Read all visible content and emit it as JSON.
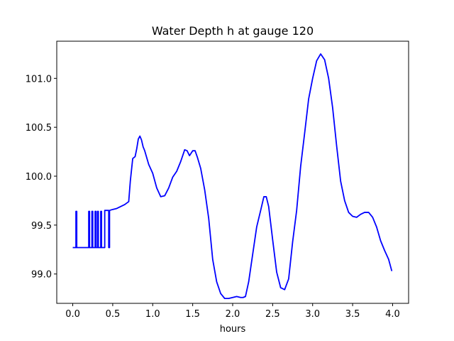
{
  "chart_data": {
    "type": "line",
    "title": "Water Depth h at gauge 120",
    "xlabel": "hours",
    "ylabel": "",
    "xlim": [
      -0.2,
      4.2
    ],
    "ylim": [
      98.7,
      101.38
    ],
    "x_ticks": [
      0.0,
      0.5,
      1.0,
      1.5,
      2.0,
      2.5,
      3.0,
      3.5,
      4.0
    ],
    "x_tick_labels": [
      "0.0",
      "0.5",
      "1.0",
      "1.5",
      "2.0",
      "2.5",
      "3.0",
      "3.5",
      "4.0"
    ],
    "y_ticks": [
      99.0,
      99.5,
      100.0,
      100.5,
      101.0
    ],
    "y_tick_labels": [
      "99.0",
      "99.5",
      "100.0",
      "100.5",
      "101.0"
    ],
    "grid": false,
    "series": [
      {
        "color": "#0000ff",
        "x": [
          0.0,
          0.04,
          0.04,
          0.05,
          0.05,
          0.2,
          0.2,
          0.21,
          0.21,
          0.24,
          0.24,
          0.25,
          0.25,
          0.28,
          0.28,
          0.29,
          0.29,
          0.31,
          0.31,
          0.32,
          0.32,
          0.35,
          0.35,
          0.36,
          0.36,
          0.4,
          0.4,
          0.41,
          0.45,
          0.45,
          0.46,
          0.46,
          0.5,
          0.55,
          0.6,
          0.65,
          0.7,
          0.72,
          0.75,
          0.78,
          0.8,
          0.82,
          0.84,
          0.86,
          0.88,
          0.9,
          0.95,
          1.0,
          1.05,
          1.1,
          1.15,
          1.2,
          1.25,
          1.3,
          1.35,
          1.4,
          1.43,
          1.46,
          1.5,
          1.53,
          1.56,
          1.6,
          1.65,
          1.7,
          1.75,
          1.8,
          1.85,
          1.9,
          1.95,
          2.0,
          2.05,
          2.1,
          2.13,
          2.16,
          2.2,
          2.25,
          2.3,
          2.35,
          2.39,
          2.42,
          2.45,
          2.5,
          2.55,
          2.6,
          2.65,
          2.7,
          2.75,
          2.8,
          2.85,
          2.9,
          2.95,
          3.0,
          3.05,
          3.1,
          3.15,
          3.2,
          3.25,
          3.3,
          3.35,
          3.4,
          3.45,
          3.5,
          3.55,
          3.6,
          3.65,
          3.7,
          3.75,
          3.8,
          3.85,
          3.9,
          3.95,
          3.99
        ],
        "y": [
          99.27,
          99.27,
          99.64,
          99.64,
          99.27,
          99.27,
          99.64,
          99.64,
          99.27,
          99.27,
          99.64,
          99.64,
          99.27,
          99.27,
          99.64,
          99.64,
          99.27,
          99.27,
          99.64,
          99.64,
          99.27,
          99.27,
          99.64,
          99.64,
          99.27,
          99.27,
          99.65,
          99.65,
          99.65,
          99.27,
          99.27,
          99.65,
          99.66,
          99.67,
          99.69,
          99.71,
          99.74,
          99.95,
          100.18,
          100.2,
          100.28,
          100.38,
          100.41,
          100.37,
          100.3,
          100.26,
          100.12,
          100.03,
          99.88,
          99.79,
          99.8,
          99.88,
          99.99,
          100.05,
          100.15,
          100.27,
          100.26,
          100.21,
          100.26,
          100.26,
          100.19,
          100.08,
          99.86,
          99.57,
          99.15,
          98.92,
          98.8,
          98.75,
          98.75,
          98.76,
          98.77,
          98.76,
          98.76,
          98.77,
          98.92,
          99.2,
          99.48,
          99.65,
          99.79,
          99.79,
          99.69,
          99.35,
          99.02,
          98.86,
          98.84,
          98.95,
          99.33,
          99.65,
          100.1,
          100.44,
          100.79,
          101.0,
          101.18,
          101.25,
          101.19,
          101.0,
          100.7,
          100.31,
          99.95,
          99.75,
          99.63,
          99.59,
          99.58,
          99.61,
          99.63,
          99.63,
          99.58,
          99.48,
          99.34,
          99.24,
          99.15,
          99.03
        ]
      }
    ]
  }
}
